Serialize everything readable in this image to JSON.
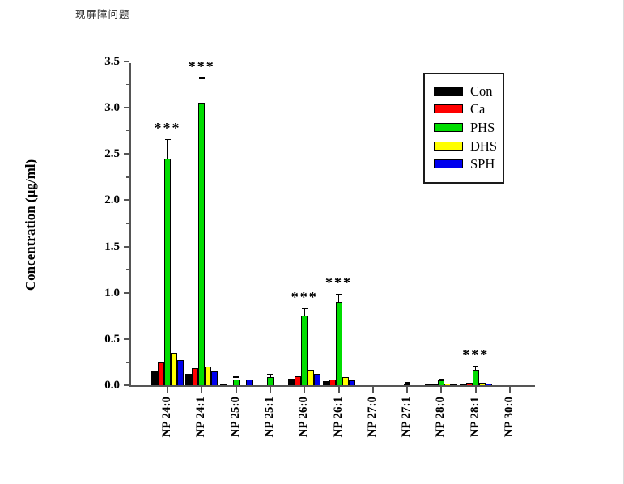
{
  "page": {
    "header_text": "现屏障问题"
  },
  "chart_data": {
    "type": "bar",
    "title": "",
    "xlabel": "",
    "ylabel": "Concentration (µg/ml)",
    "ylim": [
      0,
      3.5
    ],
    "ytick_labels": [
      "0.0",
      "0.5",
      "1.0",
      "1.5",
      "2.0",
      "2.5",
      "3.0",
      "3.5"
    ],
    "ytick_minor_step": 0.25,
    "grid": false,
    "legend_position": "top-right",
    "categories": [
      "NP 24:0",
      "NP 24:1",
      "NP 25:0",
      "NP 25:1",
      "NP 26:0",
      "NP 26:1",
      "NP 27:0",
      "NP 27:1",
      "NP 28:0",
      "NP 28:1",
      "NP 30:0"
    ],
    "series": [
      {
        "name": "Con",
        "color": "#000000",
        "values": [
          0.15,
          0.12,
          0.01,
          0.0,
          0.07,
          0.04,
          0.0,
          0.0,
          0.02,
          0.01,
          0.0
        ]
      },
      {
        "name": "Ca",
        "color": "#ff0000",
        "values": [
          0.25,
          0.18,
          0.0,
          0.0,
          0.1,
          0.06,
          0.0,
          0.0,
          0.01,
          0.03,
          0.0
        ]
      },
      {
        "name": "PHS",
        "color": "#00dd00",
        "values": [
          2.45,
          3.05,
          0.06,
          0.09,
          0.75,
          0.9,
          0.0,
          0.01,
          0.05,
          0.17,
          0.0
        ],
        "errors": [
          0.2,
          0.27,
          0.02,
          0.02,
          0.07,
          0.08,
          0.0,
          0.01,
          0.01,
          0.03,
          0.0
        ]
      },
      {
        "name": "DHS",
        "color": "#ffff00",
        "values": [
          0.35,
          0.2,
          0.0,
          0.0,
          0.17,
          0.09,
          0.0,
          0.0,
          0.02,
          0.03,
          0.0
        ]
      },
      {
        "name": "SPH",
        "color": "#0000ee",
        "values": [
          0.27,
          0.15,
          0.06,
          0.0,
          0.12,
          0.05,
          0.0,
          0.0,
          0.01,
          0.02,
          0.0
        ]
      }
    ],
    "significance": [
      {
        "category": "NP 24:0",
        "marker": "***"
      },
      {
        "category": "NP 24:1",
        "marker": "***"
      },
      {
        "category": "NP 26:0",
        "marker": "***"
      },
      {
        "category": "NP 26:1",
        "marker": "***"
      },
      {
        "category": "NP 28:1",
        "marker": "***"
      }
    ]
  }
}
